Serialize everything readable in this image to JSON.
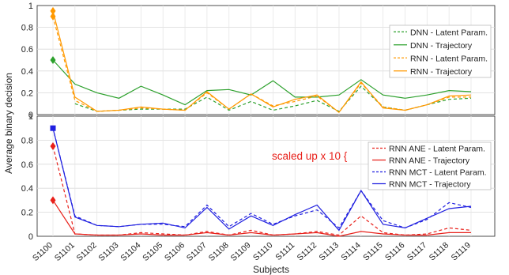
{
  "chart_data": [
    {
      "type": "line",
      "panel": "top",
      "ylabel": "",
      "xlabel": "",
      "ylim": [
        0,
        1
      ],
      "yticks": [
        "0",
        "0.2",
        "0.4",
        "0.6",
        "0.8",
        "1"
      ],
      "grid": true,
      "legend_position": "right",
      "categories": [
        "S1100",
        "S1101",
        "S1102",
        "S1103",
        "S1104",
        "S1105",
        "S1106",
        "S1107",
        "S1108",
        "S1109",
        "S1110",
        "S1111",
        "S1112",
        "S1113",
        "S1114",
        "S1115",
        "S1116",
        "S1117",
        "S1118",
        "S1119"
      ],
      "series": [
        {
          "name": "DNN - Latent Param.",
          "color": "#2ca02c",
          "dash": true,
          "values": [
            null,
            0.1,
            0.03,
            0.04,
            0.05,
            0.05,
            0.05,
            0.16,
            0.04,
            0.12,
            0.04,
            0.08,
            0.13,
            0.03,
            0.26,
            0.07,
            0.04,
            0.09,
            0.14,
            0.15
          ]
        },
        {
          "name": "DNN - Trajectory",
          "color": "#2ca02c",
          "dash": false,
          "values": [
            0.5,
            0.28,
            0.2,
            0.15,
            0.26,
            0.18,
            0.09,
            0.22,
            0.23,
            0.18,
            0.31,
            0.16,
            0.16,
            0.18,
            0.32,
            0.18,
            0.15,
            0.18,
            0.22,
            0.21
          ]
        },
        {
          "name": "RNN - Latent Param.",
          "color": "#ff9900",
          "dash": true,
          "values": [
            0.9,
            0.13,
            0.03,
            0.04,
            0.06,
            0.05,
            0.04,
            0.2,
            0.05,
            0.19,
            0.08,
            0.12,
            0.17,
            0.02,
            0.29,
            0.07,
            0.04,
            0.09,
            0.16,
            0.16
          ]
        },
        {
          "name": "RNN - Trajectory",
          "color": "#ff9900",
          "dash": false,
          "values": [
            0.95,
            0.16,
            0.03,
            0.04,
            0.07,
            0.05,
            0.04,
            0.21,
            0.05,
            0.19,
            0.07,
            0.14,
            0.18,
            0.02,
            0.3,
            0.06,
            0.04,
            0.09,
            0.17,
            0.18
          ]
        }
      ],
      "markers": [
        {
          "x": "S1100",
          "y": 0.5,
          "color": "#2ca02c",
          "shape": "diamond"
        },
        {
          "x": "S1100",
          "y": 0.9,
          "color": "#ff9900",
          "shape": "diamond"
        },
        {
          "x": "S1100",
          "y": 0.95,
          "color": "#ff9900",
          "shape": "diamond"
        }
      ]
    },
    {
      "type": "line",
      "panel": "bottom",
      "ylabel": "",
      "xlabel": "Subjects",
      "ylim": [
        0,
        1
      ],
      "yticks": [
        "0",
        "0.2",
        "0.4",
        "0.6",
        "0.8",
        "1"
      ],
      "grid": true,
      "legend_position": "right",
      "annotation": {
        "text": "scaled up x 10 {",
        "color": "#e8201a"
      },
      "categories": [
        "S1100",
        "S1101",
        "S1102",
        "S1103",
        "S1104",
        "S1105",
        "S1106",
        "S1107",
        "S1108",
        "S1109",
        "S1110",
        "S1111",
        "S1112",
        "S1113",
        "S1114",
        "S1115",
        "S1116",
        "S1117",
        "S1118",
        "S1119"
      ],
      "series": [
        {
          "name": "RNN ANE - Latent Param.",
          "color": "#e8201a",
          "dash": true,
          "values": [
            0.75,
            0.02,
            0.01,
            0.01,
            0.03,
            0.02,
            0.01,
            0.04,
            0.01,
            0.05,
            0.01,
            0.02,
            0.04,
            0.01,
            0.17,
            0.03,
            0.01,
            0.02,
            0.07,
            0.05
          ]
        },
        {
          "name": "RNN ANE - Trajectory",
          "color": "#e8201a",
          "dash": false,
          "values": [
            0.3,
            0.02,
            0.01,
            0.01,
            0.02,
            0.01,
            0.01,
            0.03,
            0.01,
            0.03,
            0.01,
            0.02,
            0.03,
            0.0,
            0.04,
            0.02,
            0.01,
            0.01,
            0.03,
            0.03
          ]
        },
        {
          "name": "RNN MCT - Latent Param.",
          "color": "#1f1fe0",
          "dash": true,
          "values": [
            0.9,
            0.17,
            0.09,
            0.08,
            0.1,
            0.1,
            0.08,
            0.26,
            0.08,
            0.19,
            0.1,
            0.17,
            0.22,
            0.07,
            0.38,
            0.13,
            0.07,
            0.14,
            0.28,
            0.24
          ]
        },
        {
          "name": "RNN MCT - Trajectory",
          "color": "#1f1fe0",
          "dash": false,
          "values": [
            0.9,
            0.16,
            0.09,
            0.08,
            0.1,
            0.11,
            0.07,
            0.24,
            0.06,
            0.17,
            0.09,
            0.18,
            0.26,
            0.05,
            0.38,
            0.1,
            0.07,
            0.15,
            0.23,
            0.25
          ]
        }
      ],
      "markers": [
        {
          "x": "S1100",
          "y": 0.3,
          "color": "#e8201a",
          "shape": "diamond"
        },
        {
          "x": "S1100",
          "y": 0.75,
          "color": "#e8201a",
          "shape": "diamond"
        },
        {
          "x": "S1100",
          "y": 0.9,
          "color": "#1f1fe0",
          "shape": "square"
        }
      ]
    }
  ],
  "shared": {
    "ylabel": "Average binary decision",
    "xlabel": "Subjects"
  }
}
